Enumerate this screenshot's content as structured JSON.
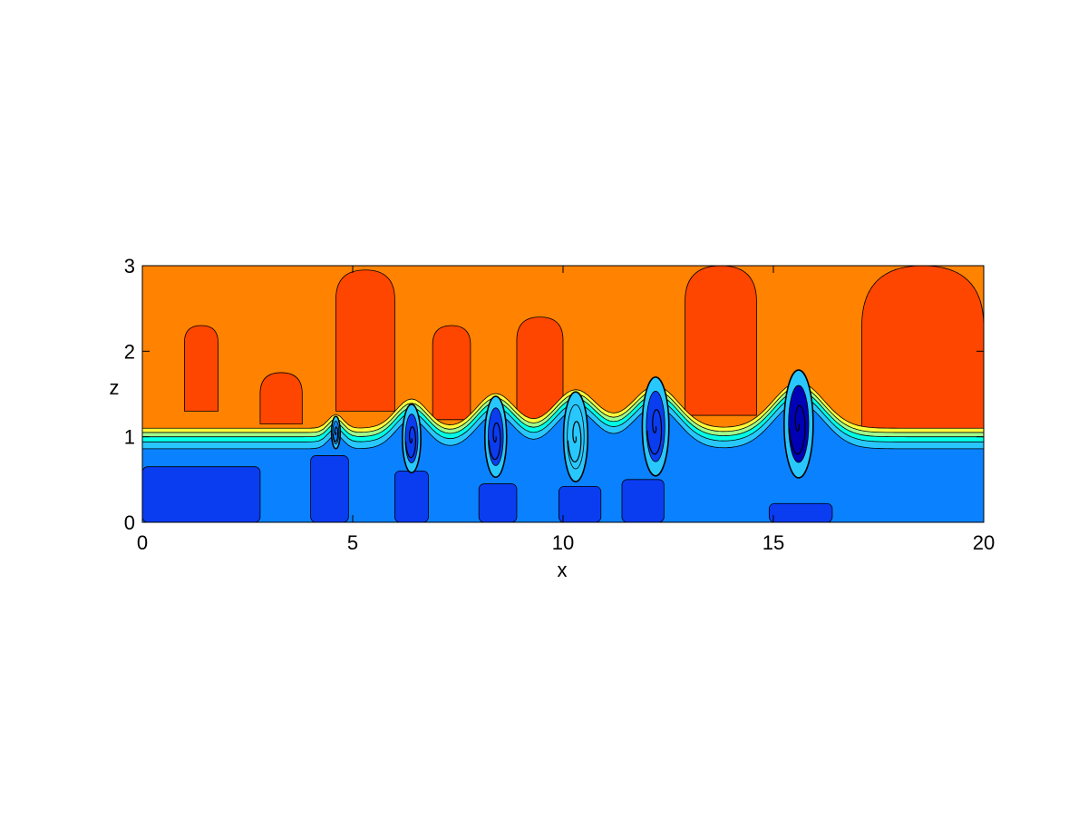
{
  "chart_data": {
    "type": "heatmap",
    "title": "",
    "xlabel": "x",
    "ylabel": "z",
    "xlim": [
      0,
      20
    ],
    "ylim": [
      0,
      3
    ],
    "xticks": [
      0,
      5,
      10,
      15,
      20
    ],
    "yticks": [
      0,
      1,
      2,
      3
    ],
    "xtick_labels": [
      "0",
      "5",
      "10",
      "15",
      "20"
    ],
    "ytick_labels": [
      "0",
      "1",
      "2",
      "3"
    ],
    "grid": false,
    "legend": "none",
    "colormap": [
      "#0000b4",
      "#0a3cf0",
      "#0a82ff",
      "#28c8ff",
      "#00ffe6",
      "#a0ff8c",
      "#ffff3c",
      "#ffc800",
      "#ff8200",
      "#ff4600",
      "#e61e00"
    ],
    "background_color": "#ff8200",
    "interface_height": 1.0,
    "billows": [
      {
        "x": 4.6,
        "z": 1.05,
        "r": 0.18,
        "core": "#0a82ff"
      },
      {
        "x": 6.4,
        "z": 0.98,
        "r": 0.38,
        "core": "#0a3cf0"
      },
      {
        "x": 8.4,
        "z": 1.0,
        "r": 0.45,
        "core": "#0a3cf0"
      },
      {
        "x": 10.3,
        "z": 1.0,
        "r": 0.5,
        "core": "#28c8ff"
      },
      {
        "x": 12.2,
        "z": 1.12,
        "r": 0.55,
        "core": "#0a3cf0"
      },
      {
        "x": 15.6,
        "z": 1.15,
        "r": 0.6,
        "core": "#0000b4"
      }
    ],
    "plumes": [
      {
        "x0": 1.0,
        "x1": 1.8,
        "z0": 1.3,
        "z1": 2.3
      },
      {
        "x0": 2.8,
        "x1": 3.8,
        "z0": 1.15,
        "z1": 1.75
      },
      {
        "x0": 4.6,
        "x1": 6.0,
        "z0": 1.3,
        "z1": 2.95
      },
      {
        "x0": 6.9,
        "x1": 7.8,
        "z0": 1.2,
        "z1": 2.3
      },
      {
        "x0": 8.9,
        "x1": 10.0,
        "z0": 1.2,
        "z1": 2.4
      },
      {
        "x0": 12.9,
        "x1": 14.6,
        "z0": 1.25,
        "z1": 3.0
      },
      {
        "x0": 17.1,
        "x1": 20.0,
        "z0": 0.95,
        "z1": 3.0
      }
    ],
    "deep_columns": [
      {
        "x0": 0.0,
        "x1": 2.8,
        "z0": 0.0,
        "z1": 0.65
      },
      {
        "x0": 4.0,
        "x1": 4.9,
        "z0": 0.0,
        "z1": 0.78
      },
      {
        "x0": 6.0,
        "x1": 6.8,
        "z0": 0.0,
        "z1": 0.6
      },
      {
        "x0": 8.0,
        "x1": 8.9,
        "z0": 0.0,
        "z1": 0.45
      },
      {
        "x0": 9.9,
        "x1": 10.9,
        "z0": 0.0,
        "z1": 0.42
      },
      {
        "x0": 11.4,
        "x1": 12.4,
        "z0": 0.0,
        "z1": 0.5
      },
      {
        "x0": 14.9,
        "x1": 16.4,
        "z0": 0.0,
        "z1": 0.22
      }
    ]
  }
}
